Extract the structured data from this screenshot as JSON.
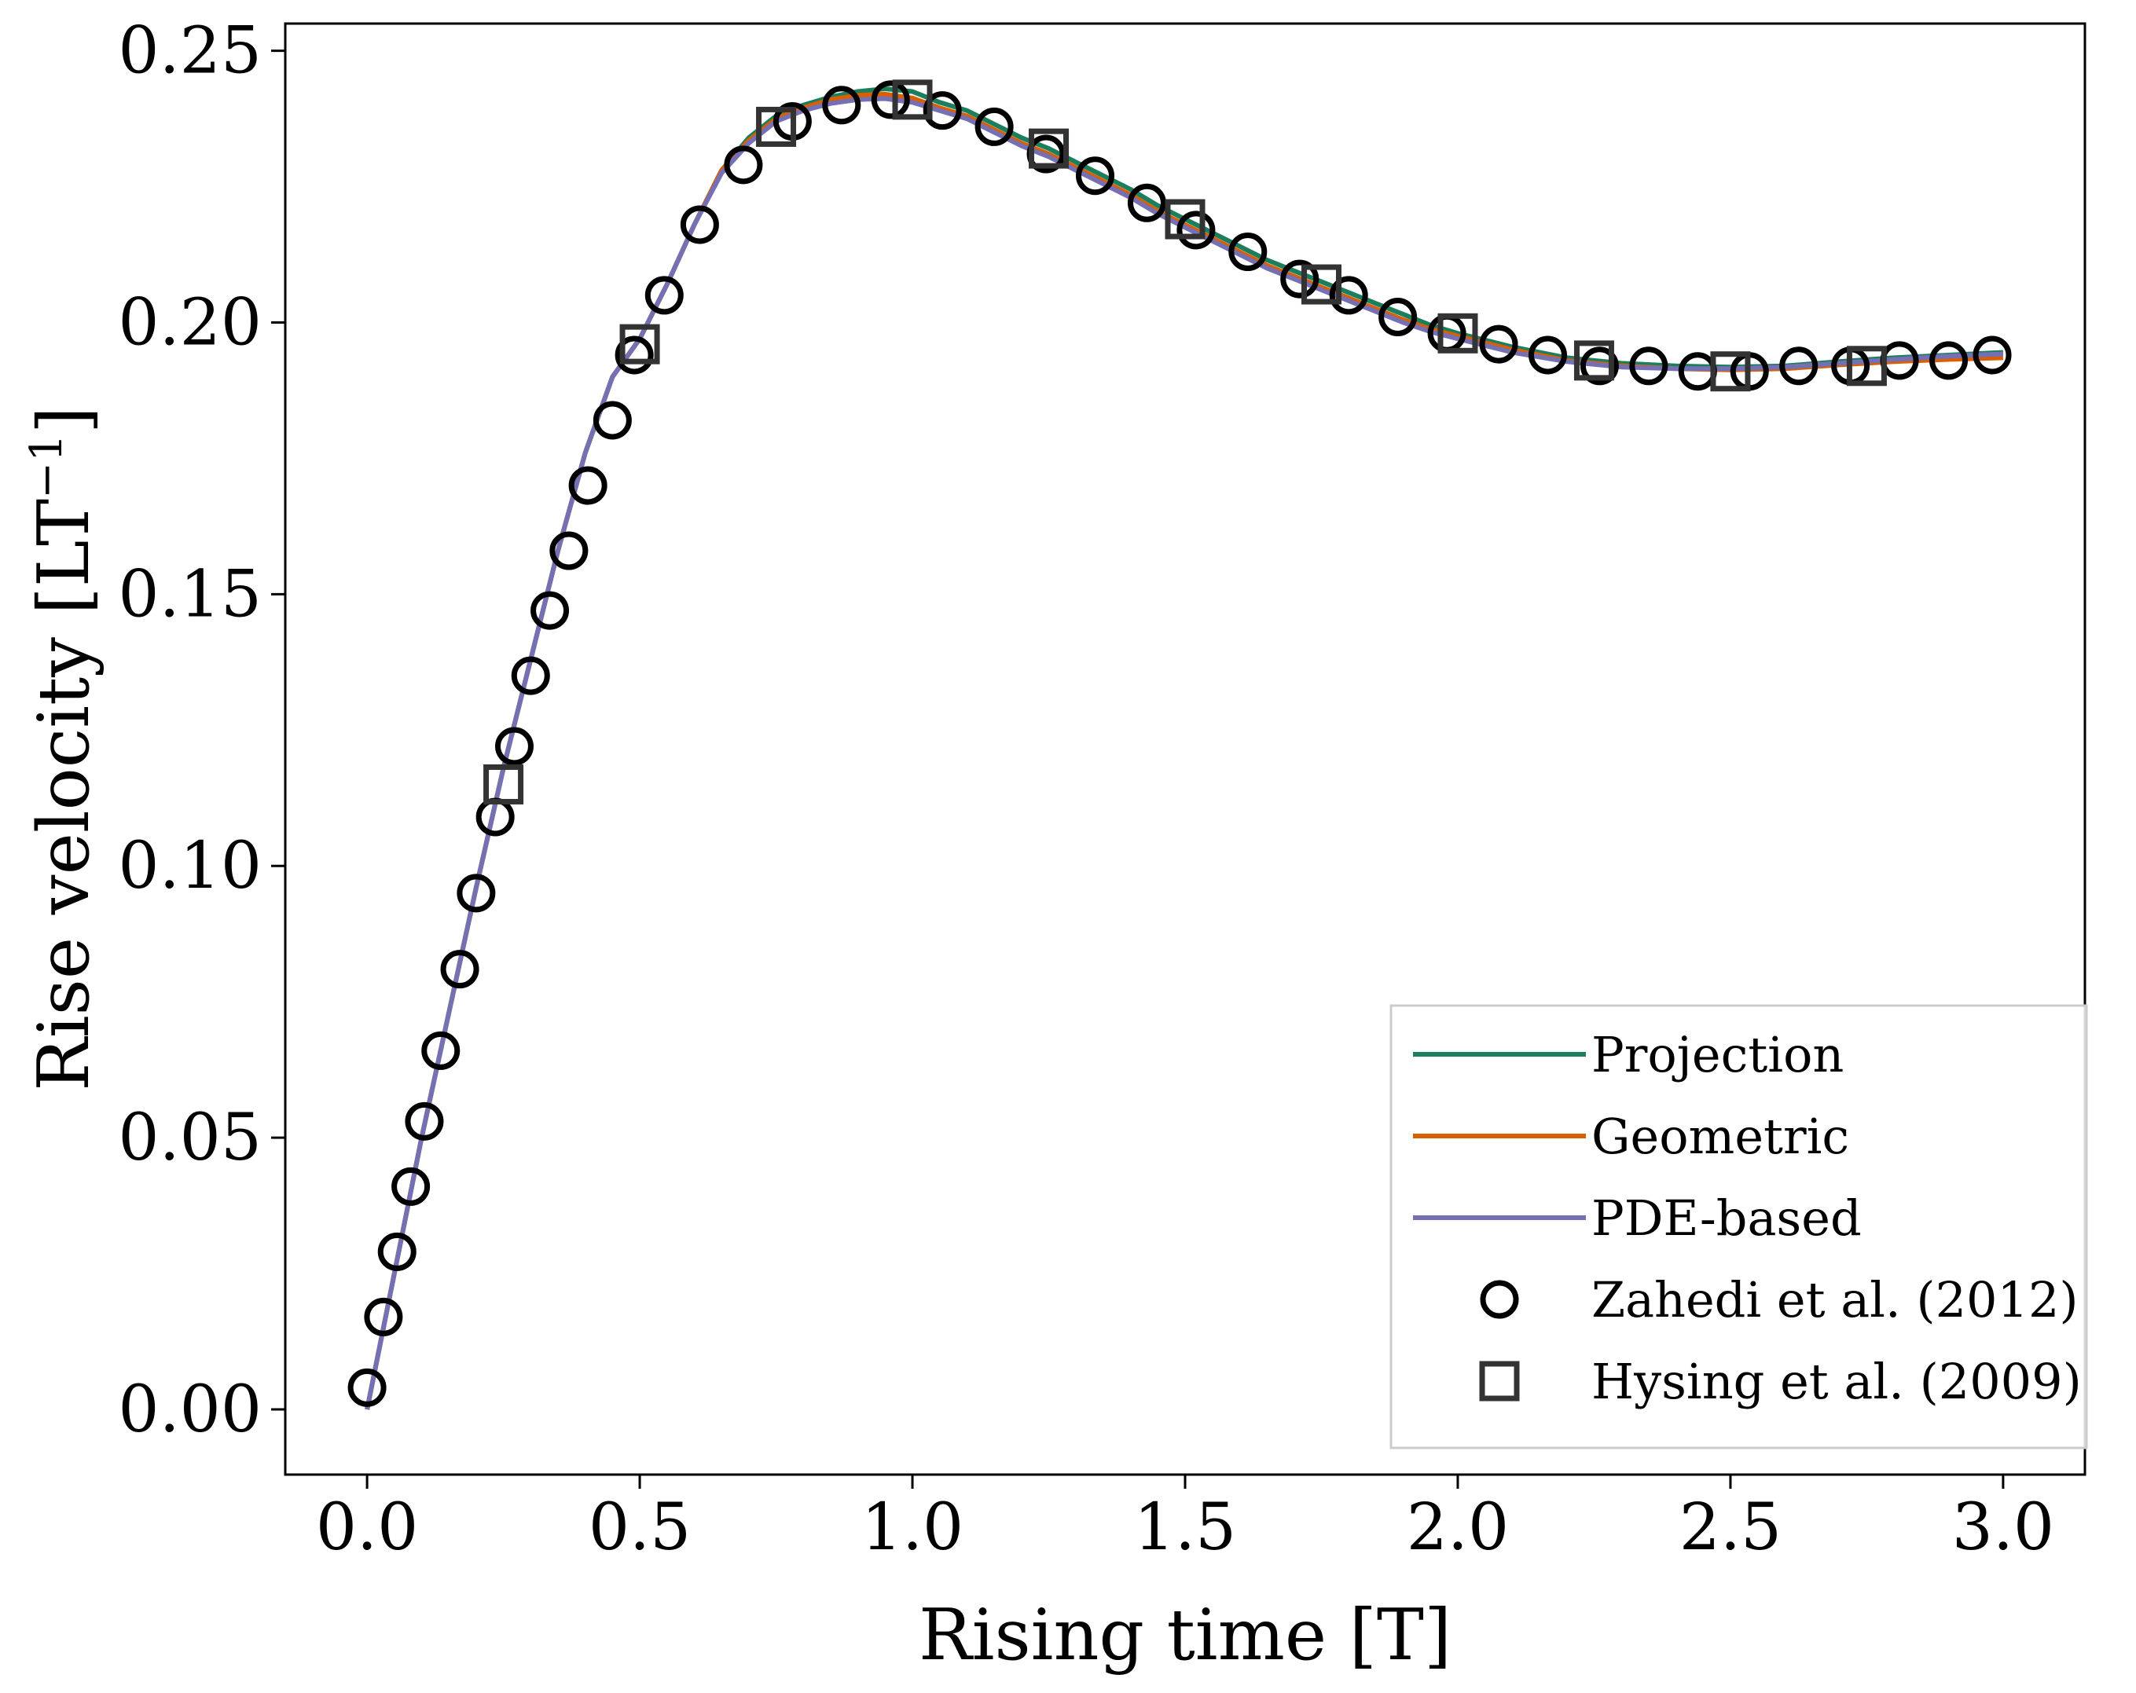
{
  "chart_data": {
    "type": "line",
    "xlabel": "Rising time [T]",
    "ylabel": "Rise velocity [LT",
    "ylabel_sup": "−1",
    "ylabel_suffix": "]",
    "xlim": [
      -0.15,
      3.15
    ],
    "ylim": [
      -0.012,
      0.255
    ],
    "xticks": [
      0.0,
      0.5,
      1.0,
      1.5,
      2.0,
      2.5,
      3.0
    ],
    "xtick_labels": [
      "0.0",
      "0.5",
      "1.0",
      "1.5",
      "2.0",
      "2.5",
      "3.0"
    ],
    "yticks": [
      0.0,
      0.05,
      0.1,
      0.15,
      0.2,
      0.25
    ],
    "ytick_labels": [
      "0.00",
      "0.05",
      "0.10",
      "0.15",
      "0.20",
      "0.25"
    ],
    "grid": false,
    "legend_position": "bottom-right",
    "series": [
      {
        "name": "Projection",
        "kind": "line",
        "color": "#1b7f5e",
        "x": [
          0.0,
          0.05,
          0.1,
          0.15,
          0.2,
          0.25,
          0.3,
          0.35,
          0.4,
          0.45,
          0.5,
          0.55,
          0.6,
          0.65,
          0.7,
          0.75,
          0.8,
          0.85,
          0.9,
          0.95,
          1.0,
          1.05,
          1.1,
          1.15,
          1.2,
          1.25,
          1.3,
          1.35,
          1.4,
          1.45,
          1.5,
          1.55,
          1.6,
          1.65,
          1.7,
          1.75,
          1.8,
          1.85,
          1.9,
          1.95,
          2.0,
          2.1,
          2.2,
          2.3,
          2.4,
          2.5,
          2.6,
          2.7,
          2.8,
          2.9,
          3.0
        ],
        "y": [
          0.0,
          0.025,
          0.05,
          0.073,
          0.096,
          0.118,
          0.138,
          0.158,
          0.176,
          0.19,
          0.197,
          0.207,
          0.218,
          0.228,
          0.234,
          0.238,
          0.24,
          0.2415,
          0.2425,
          0.243,
          0.2425,
          0.2405,
          0.239,
          0.2365,
          0.234,
          0.232,
          0.2295,
          0.227,
          0.2245,
          0.2215,
          0.219,
          0.2165,
          0.214,
          0.2115,
          0.2095,
          0.2075,
          0.2055,
          0.2035,
          0.2015,
          0.1995,
          0.198,
          0.1955,
          0.1935,
          0.1925,
          0.192,
          0.1918,
          0.192,
          0.1928,
          0.1935,
          0.194,
          0.1945
        ]
      },
      {
        "name": "Geometric",
        "kind": "line",
        "color": "#d95f02",
        "x": [
          0.0,
          0.05,
          0.1,
          0.15,
          0.2,
          0.25,
          0.3,
          0.35,
          0.4,
          0.45,
          0.5,
          0.55,
          0.6,
          0.65,
          0.7,
          0.75,
          0.8,
          0.85,
          0.9,
          0.95,
          1.0,
          1.05,
          1.1,
          1.15,
          1.2,
          1.25,
          1.3,
          1.35,
          1.4,
          1.45,
          1.5,
          1.55,
          1.6,
          1.65,
          1.7,
          1.75,
          1.8,
          1.85,
          1.9,
          1.95,
          2.0,
          2.1,
          2.2,
          2.3,
          2.4,
          2.5,
          2.6,
          2.7,
          2.8,
          2.9,
          3.0
        ],
        "y": [
          0.0,
          0.025,
          0.05,
          0.073,
          0.096,
          0.118,
          0.138,
          0.158,
          0.176,
          0.19,
          0.197,
          0.207,
          0.218,
          0.228,
          0.2335,
          0.2375,
          0.2395,
          0.241,
          0.2418,
          0.242,
          0.2413,
          0.2395,
          0.238,
          0.2355,
          0.233,
          0.231,
          0.2285,
          0.226,
          0.2235,
          0.2205,
          0.218,
          0.2155,
          0.213,
          0.2105,
          0.2085,
          0.2065,
          0.2045,
          0.2025,
          0.2005,
          0.1988,
          0.1975,
          0.195,
          0.193,
          0.192,
          0.1915,
          0.1913,
          0.1915,
          0.1922,
          0.1928,
          0.1932,
          0.1935
        ]
      },
      {
        "name": "PDE-based",
        "kind": "line",
        "color": "#7570b3",
        "x": [
          0.0,
          0.05,
          0.1,
          0.15,
          0.2,
          0.25,
          0.3,
          0.35,
          0.4,
          0.45,
          0.5,
          0.55,
          0.6,
          0.65,
          0.7,
          0.75,
          0.8,
          0.85,
          0.9,
          0.95,
          1.0,
          1.05,
          1.1,
          1.15,
          1.2,
          1.25,
          1.3,
          1.35,
          1.4,
          1.45,
          1.5,
          1.55,
          1.6,
          1.65,
          1.7,
          1.75,
          1.8,
          1.85,
          1.9,
          1.95,
          2.0,
          2.1,
          2.2,
          2.3,
          2.4,
          2.5,
          2.6,
          2.7,
          2.8,
          2.9,
          3.0
        ],
        "y": [
          0.0,
          0.025,
          0.05,
          0.073,
          0.096,
          0.118,
          0.138,
          0.158,
          0.176,
          0.19,
          0.197,
          0.207,
          0.218,
          0.2275,
          0.233,
          0.237,
          0.239,
          0.2403,
          0.241,
          0.2412,
          0.2405,
          0.239,
          0.2375,
          0.235,
          0.2325,
          0.2305,
          0.228,
          0.2255,
          0.223,
          0.22,
          0.2175,
          0.215,
          0.2125,
          0.21,
          0.208,
          0.206,
          0.204,
          0.202,
          0.2,
          0.1983,
          0.197,
          0.1945,
          0.1928,
          0.1918,
          0.1915,
          0.1915,
          0.1918,
          0.1925,
          0.1932,
          0.1938,
          0.1942
        ]
      },
      {
        "name": "Zahedi et al. (2012)",
        "kind": "circle-markers",
        "color": "#000000",
        "x": [
          0.0,
          0.03,
          0.055,
          0.08,
          0.105,
          0.135,
          0.17,
          0.2,
          0.235,
          0.27,
          0.3,
          0.335,
          0.37,
          0.405,
          0.45,
          0.49,
          0.545,
          0.61,
          0.69,
          0.78,
          0.87,
          0.96,
          1.055,
          1.15,
          1.245,
          1.335,
          1.43,
          1.52,
          1.615,
          1.71,
          1.8,
          1.89,
          1.98,
          2.075,
          2.165,
          2.26,
          2.35,
          2.44,
          2.535,
          2.625,
          2.72,
          2.81,
          2.9,
          2.98
        ],
        "y": [
          0.004,
          0.017,
          0.029,
          0.041,
          0.053,
          0.066,
          0.081,
          0.095,
          0.109,
          0.122,
          0.135,
          0.147,
          0.158,
          0.17,
          0.182,
          0.194,
          0.205,
          0.218,
          0.229,
          0.237,
          0.24,
          0.241,
          0.239,
          0.236,
          0.231,
          0.227,
          0.222,
          0.217,
          0.213,
          0.208,
          0.205,
          0.201,
          0.198,
          0.196,
          0.194,
          0.192,
          0.192,
          0.191,
          0.191,
          0.192,
          0.192,
          0.193,
          0.193,
          0.194
        ]
      },
      {
        "name": "Hysing et al. (2009)",
        "kind": "square-markers",
        "color": "#333333",
        "x": [
          0.25,
          0.5,
          0.75,
          1.0,
          1.25,
          1.5,
          1.75,
          2.0,
          2.25,
          2.5,
          2.75
        ],
        "y": [
          0.115,
          0.196,
          0.236,
          0.241,
          0.232,
          0.219,
          0.207,
          0.198,
          0.193,
          0.191,
          0.192
        ]
      }
    ]
  }
}
